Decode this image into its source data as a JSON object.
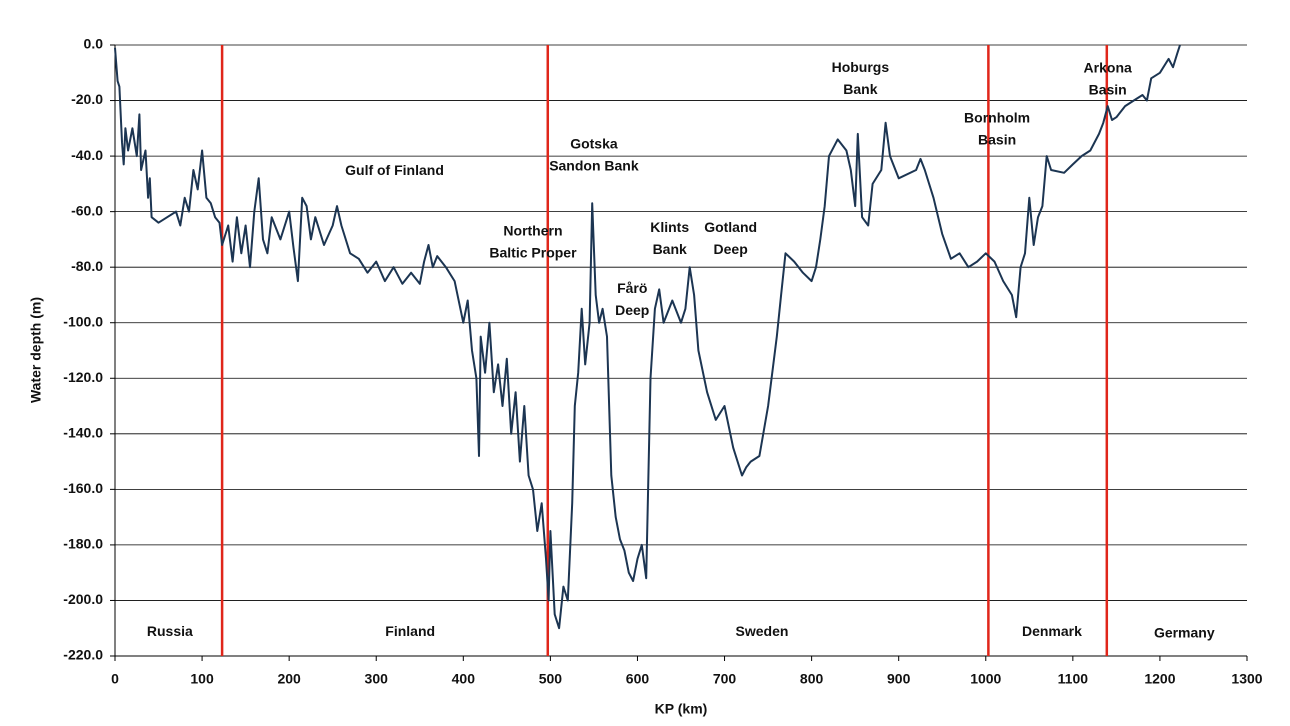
{
  "chart_data": {
    "type": "line",
    "xlabel": "KP (km)",
    "ylabel": "Water depth (m)",
    "xlim": [
      0,
      1300
    ],
    "xticks": [
      0,
      100,
      200,
      300,
      400,
      500,
      600,
      700,
      800,
      900,
      1000,
      1100,
      1200,
      1300
    ],
    "ylim": [
      -220,
      0
    ],
    "yticks": [
      {
        "value": 0,
        "label": "0.0"
      },
      {
        "value": -20,
        "label": "-20.0"
      },
      {
        "value": -40,
        "label": "-40.0"
      },
      {
        "value": -60,
        "label": "-60.0"
      },
      {
        "value": -80,
        "label": "-80.0"
      },
      {
        "value": -100,
        "label": "-100.0"
      },
      {
        "value": -120,
        "label": "-120.0"
      },
      {
        "value": -140,
        "label": "-140.0"
      },
      {
        "value": -160,
        "label": "-160.0"
      },
      {
        "value": -180,
        "label": "-180.0"
      },
      {
        "value": -200,
        "label": "-200.0"
      },
      {
        "value": -220,
        "label": "-220.0"
      }
    ],
    "grid": true,
    "color": "#1c3552",
    "boundary_color": "#e0261a",
    "boundaries": [
      123,
      497,
      1003,
      1139
    ],
    "x": [
      0,
      3,
      5,
      8,
      10,
      12,
      15,
      20,
      25,
      28,
      30,
      35,
      38,
      40,
      42,
      50,
      60,
      70,
      75,
      80,
      85,
      90,
      95,
      100,
      105,
      110,
      115,
      120,
      123,
      130,
      135,
      140,
      145,
      150,
      155,
      160,
      165,
      170,
      175,
      180,
      190,
      200,
      205,
      210,
      215,
      220,
      225,
      230,
      240,
      250,
      255,
      260,
      270,
      280,
      290,
      300,
      310,
      320,
      330,
      340,
      350,
      355,
      360,
      365,
      370,
      380,
      390,
      400,
      405,
      410,
      415,
      418,
      420,
      425,
      430,
      435,
      440,
      445,
      450,
      455,
      460,
      465,
      470,
      475,
      480,
      485,
      490,
      495,
      498,
      500,
      505,
      510,
      515,
      520,
      525,
      528,
      532,
      536,
      540,
      545,
      548,
      552,
      556,
      560,
      565,
      570,
      575,
      580,
      585,
      590,
      595,
      600,
      605,
      610,
      615,
      620,
      625,
      630,
      640,
      650,
      655,
      660,
      665,
      670,
      680,
      690,
      700,
      710,
      720,
      725,
      730,
      740,
      750,
      760,
      765,
      770,
      780,
      790,
      800,
      805,
      810,
      815,
      820,
      830,
      840,
      845,
      850,
      853,
      858,
      865,
      870,
      880,
      885,
      890,
      900,
      920,
      925,
      930,
      940,
      950,
      960,
      970,
      980,
      990,
      1000,
      1010,
      1020,
      1030,
      1035,
      1040,
      1045,
      1050,
      1055,
      1060,
      1065,
      1070,
      1075,
      1090,
      1100,
      1110,
      1120,
      1130,
      1135,
      1140,
      1145,
      1150,
      1160,
      1170,
      1180,
      1185,
      1190,
      1200,
      1210,
      1215,
      1220,
      1223
    ],
    "values": [
      -1,
      -13,
      -15,
      -35,
      -43,
      -30,
      -38,
      -30,
      -40,
      -25,
      -45,
      -38,
      -55,
      -48,
      -62,
      -64,
      -62,
      -60,
      -65,
      -55,
      -60,
      -45,
      -52,
      -38,
      -55,
      -57,
      -62,
      -64,
      -72,
      -65,
      -78,
      -62,
      -75,
      -65,
      -80,
      -60,
      -48,
      -70,
      -75,
      -62,
      -70,
      -60,
      -73,
      -85,
      -55,
      -58,
      -70,
      -62,
      -72,
      -65,
      -58,
      -65,
      -75,
      -77,
      -82,
      -78,
      -85,
      -80,
      -86,
      -82,
      -86,
      -78,
      -72,
      -80,
      -76,
      -80,
      -85,
      -100,
      -92,
      -110,
      -120,
      -148,
      -105,
      -118,
      -100,
      -125,
      -115,
      -130,
      -113,
      -140,
      -125,
      -150,
      -130,
      -155,
      -160,
      -175,
      -165,
      -185,
      -200,
      -175,
      -205,
      -210,
      -195,
      -200,
      -165,
      -130,
      -118,
      -95,
      -115,
      -100,
      -57,
      -90,
      -100,
      -95,
      -105,
      -155,
      -170,
      -178,
      -182,
      -190,
      -193,
      -185,
      -180,
      -192,
      -120,
      -95,
      -88,
      -100,
      -92,
      -100,
      -95,
      -80,
      -90,
      -110,
      -125,
      -135,
      -130,
      -145,
      -155,
      -152,
      -150,
      -148,
      -130,
      -105,
      -90,
      -75,
      -78,
      -82,
      -85,
      -80,
      -70,
      -58,
      -40,
      -34,
      -38,
      -45,
      -58,
      -32,
      -62,
      -65,
      -50,
      -45,
      -28,
      -40,
      -48,
      -45,
      -41,
      -45,
      -55,
      -68,
      -77,
      -75,
      -80,
      -78,
      -75,
      -78,
      -85,
      -90,
      -98,
      -80,
      -75,
      -55,
      -72,
      -62,
      -58,
      -40,
      -45,
      -46,
      -43,
      -40,
      -38,
      -32,
      -28,
      -22,
      -27,
      -26,
      -22,
      -20,
      -18,
      -20,
      -12,
      -10,
      -5,
      -8,
      -3,
      0
    ],
    "annotations": [
      {
        "lines": [
          "Gulf of Finland"
        ],
        "x": 321,
        "y": -45.4
      },
      {
        "lines": [
          "Northern",
          "Baltic Proper"
        ],
        "x": 480,
        "y": -67.3
      },
      {
        "lines": [
          "Gotska",
          "Sandon Bank"
        ],
        "x": 550,
        "y": -36
      },
      {
        "lines": [
          "Klints",
          "Bank"
        ],
        "x": 637,
        "y": -66
      },
      {
        "lines": [
          "Gotland",
          "Deep"
        ],
        "x": 707,
        "y": -66
      },
      {
        "lines": [
          "Fårö",
          "Deep"
        ],
        "x": 594,
        "y": -88
      },
      {
        "lines": [
          "Hoburgs",
          "Bank"
        ],
        "x": 856,
        "y": -8.3
      },
      {
        "lines": [
          "Bornholm",
          "Basin"
        ],
        "x": 1013,
        "y": -26.6
      },
      {
        "lines": [
          "Arkona",
          "Basin"
        ],
        "x": 1140,
        "y": -8.6
      },
      {
        "lines": [
          "Russia"
        ],
        "x": 63,
        "y": -211.4
      },
      {
        "lines": [
          "Finland"
        ],
        "x": 339,
        "y": -211.4
      },
      {
        "lines": [
          "Sweden"
        ],
        "x": 743,
        "y": -211.4
      },
      {
        "lines": [
          "Denmark"
        ],
        "x": 1076,
        "y": -211.4
      },
      {
        "lines": [
          "Germany"
        ],
        "x": 1228,
        "y": -212
      }
    ]
  }
}
